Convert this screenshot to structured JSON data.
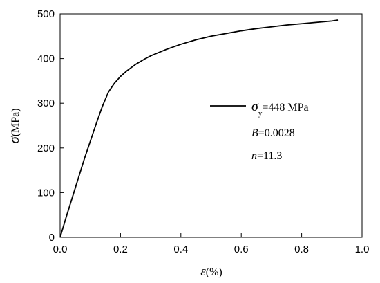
{
  "chart_data": {
    "type": "line",
    "xlabel": {
      "symbol": "ε",
      "unit": "(%)"
    },
    "ylabel": {
      "symbol": "σ",
      "unit": "(MPa)"
    },
    "xlim": [
      0.0,
      1.0
    ],
    "ylim": [
      0,
      500
    ],
    "xticks": [
      "0.0",
      "0.2",
      "0.4",
      "0.6",
      "0.8",
      "1.0"
    ],
    "yticks": [
      "0",
      "100",
      "200",
      "300",
      "400",
      "500"
    ],
    "grid": false,
    "legend_position": "center-right",
    "series": [
      {
        "color": "#000000",
        "x": [
          0.0,
          0.02,
          0.05,
          0.08,
          0.1,
          0.12,
          0.14,
          0.16,
          0.18,
          0.2,
          0.22,
          0.25,
          0.28,
          0.3,
          0.35,
          0.4,
          0.45,
          0.5,
          0.55,
          0.6,
          0.65,
          0.7,
          0.75,
          0.8,
          0.85,
          0.9,
          0.92
        ],
        "y": [
          0,
          45,
          110,
          175,
          215,
          255,
          293,
          325,
          345,
          360,
          372,
          387,
          399,
          406,
          420,
          432,
          442,
          450,
          456,
          462,
          467,
          471,
          475,
          478,
          481,
          484,
          486
        ]
      }
    ],
    "annotations": {
      "sigma_y": {
        "symbol": "σ",
        "subscript": "y",
        "value": "=448 MPa"
      },
      "B": {
        "symbol": "B",
        "value": "=0.0028"
      },
      "n": {
        "symbol": "n",
        "value": "=11.3"
      }
    }
  }
}
